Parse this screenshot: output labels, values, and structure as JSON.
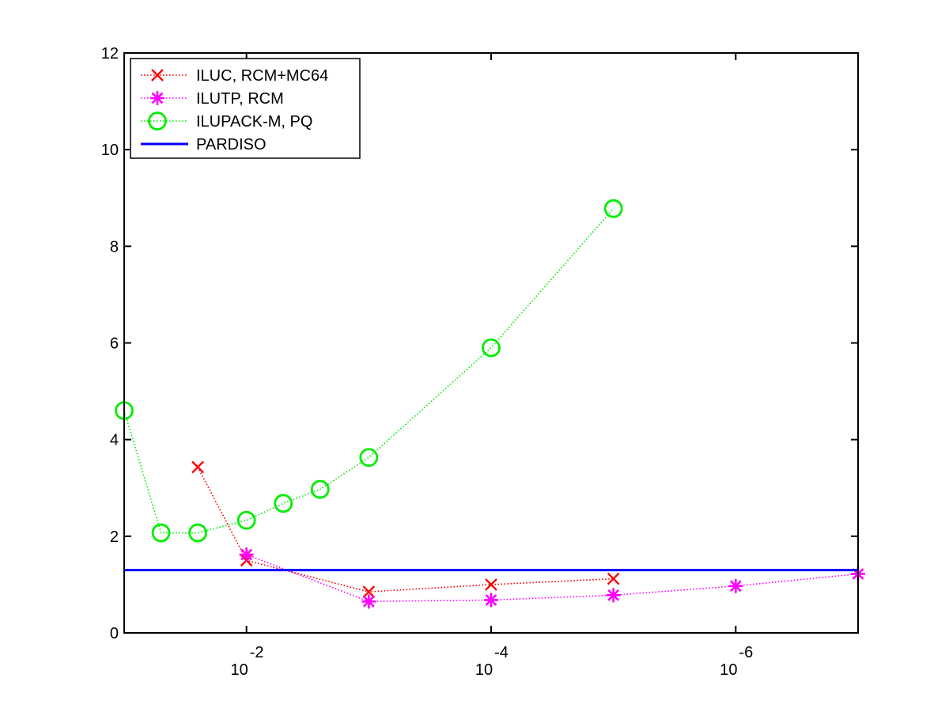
{
  "chart_data": {
    "type": "line",
    "title": "",
    "xlabel": "",
    "ylabel": "",
    "x_scale": "log-reversed",
    "x_ticks": [
      {
        "value": 0.01,
        "base": "10",
        "exp": "-2"
      },
      {
        "value": 0.0001,
        "base": "10",
        "exp": "-4"
      },
      {
        "value": 1e-06,
        "base": "10",
        "exp": "-6"
      }
    ],
    "xlim": [
      0.1,
      1e-07
    ],
    "ylim": [
      0,
      12
    ],
    "y_ticks": [
      {
        "value": 0,
        "label": "0"
      },
      {
        "value": 2,
        "label": "2"
      },
      {
        "value": 4,
        "label": "4"
      },
      {
        "value": 6,
        "label": "6"
      },
      {
        "value": 8,
        "label": "8"
      },
      {
        "value": 10,
        "label": "10"
      },
      {
        "value": 12,
        "label": "12"
      }
    ],
    "grid": false,
    "legend_position": "top-left",
    "series": [
      {
        "name": "ILUC, RCM+MC64",
        "color": "#ff0000",
        "marker": "x",
        "line_style": "dotted",
        "points": [
          {
            "x": 0.025,
            "y": 3.43
          },
          {
            "x": 0.01,
            "y": 1.5
          },
          {
            "x": 0.001,
            "y": 0.85
          },
          {
            "x": 0.0001,
            "y": 1.0
          },
          {
            "x": 1e-05,
            "y": 1.12
          }
        ]
      },
      {
        "name": "ILUTP, RCM",
        "color": "#ff00ff",
        "marker": "asterisk",
        "line_style": "dotted",
        "points": [
          {
            "x": 0.01,
            "y": 1.62
          },
          {
            "x": 0.001,
            "y": 0.65
          },
          {
            "x": 0.0001,
            "y": 0.68
          },
          {
            "x": 1e-05,
            "y": 0.78
          },
          {
            "x": 1e-06,
            "y": 0.97
          },
          {
            "x": 1e-07,
            "y": 1.22
          }
        ]
      },
      {
        "name": "ILUPACK-M, PQ",
        "color": "#00ee00",
        "marker": "circle",
        "line_style": "dotted",
        "points": [
          {
            "x": 0.1,
            "y": 4.6
          },
          {
            "x": 0.05,
            "y": 2.07
          },
          {
            "x": 0.025,
            "y": 2.07
          },
          {
            "x": 0.01,
            "y": 2.33
          },
          {
            "x": 0.005,
            "y": 2.68
          },
          {
            "x": 0.0025,
            "y": 2.97
          },
          {
            "x": 0.001,
            "y": 3.63
          },
          {
            "x": 0.0001,
            "y": 5.9
          },
          {
            "x": 1e-05,
            "y": 8.78
          }
        ]
      },
      {
        "name": "PARDISO",
        "color": "#0000ff",
        "marker": "none",
        "line_style": "solid",
        "points": [
          {
            "x": 0.1,
            "y": 1.3
          },
          {
            "x": 1e-07,
            "y": 1.3
          }
        ]
      }
    ]
  }
}
